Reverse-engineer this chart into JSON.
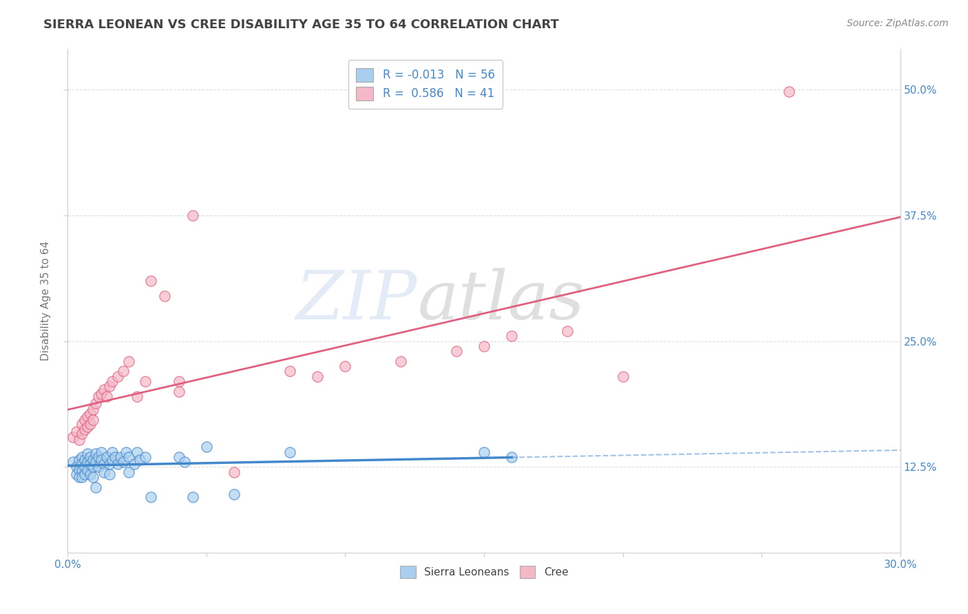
{
  "title": "SIERRA LEONEAN VS CREE DISABILITY AGE 35 TO 64 CORRELATION CHART",
  "source": "Source: ZipAtlas.com",
  "ylabel": "Disability Age 35 to 64",
  "xlim": [
    0.0,
    0.3
  ],
  "ylim": [
    0.04,
    0.54
  ],
  "yticks": [
    0.125,
    0.25,
    0.375,
    0.5
  ],
  "ytick_labels": [
    "12.5%",
    "25.0%",
    "37.5%",
    "50.0%"
  ],
  "xticks": [
    0.0,
    0.05,
    0.1,
    0.15,
    0.2,
    0.25,
    0.3
  ],
  "xtick_labels": [
    "0.0%",
    "",
    "",
    "",
    "",
    "",
    "30.0%"
  ],
  "legend_r_blue": "-0.013",
  "legend_n_blue": "56",
  "legend_r_pink": "0.586",
  "legend_n_pink": "41",
  "blue_color": "#aacfee",
  "pink_color": "#f4b8c8",
  "blue_line_color": "#4488cc",
  "pink_line_color": "#e06080",
  "blue_scatter": [
    [
      0.002,
      0.13
    ],
    [
      0.003,
      0.125
    ],
    [
      0.003,
      0.118
    ],
    [
      0.004,
      0.132
    ],
    [
      0.004,
      0.122
    ],
    [
      0.004,
      0.115
    ],
    [
      0.005,
      0.135
    ],
    [
      0.005,
      0.128
    ],
    [
      0.005,
      0.122
    ],
    [
      0.005,
      0.115
    ],
    [
      0.006,
      0.132
    ],
    [
      0.006,
      0.125
    ],
    [
      0.006,
      0.118
    ],
    [
      0.007,
      0.138
    ],
    [
      0.007,
      0.13
    ],
    [
      0.007,
      0.122
    ],
    [
      0.008,
      0.135
    ],
    [
      0.008,
      0.128
    ],
    [
      0.008,
      0.118
    ],
    [
      0.009,
      0.132
    ],
    [
      0.009,
      0.125
    ],
    [
      0.009,
      0.115
    ],
    [
      0.01,
      0.138
    ],
    [
      0.01,
      0.13
    ],
    [
      0.01,
      0.105
    ],
    [
      0.011,
      0.135
    ],
    [
      0.011,
      0.125
    ],
    [
      0.012,
      0.14
    ],
    [
      0.012,
      0.132
    ],
    [
      0.013,
      0.128
    ],
    [
      0.013,
      0.12
    ],
    [
      0.014,
      0.135
    ],
    [
      0.015,
      0.128
    ],
    [
      0.015,
      0.118
    ],
    [
      0.016,
      0.14
    ],
    [
      0.016,
      0.132
    ],
    [
      0.017,
      0.135
    ],
    [
      0.018,
      0.128
    ],
    [
      0.019,
      0.135
    ],
    [
      0.02,
      0.13
    ],
    [
      0.021,
      0.14
    ],
    [
      0.022,
      0.135
    ],
    [
      0.022,
      0.12
    ],
    [
      0.024,
      0.128
    ],
    [
      0.025,
      0.14
    ],
    [
      0.026,
      0.132
    ],
    [
      0.028,
      0.135
    ],
    [
      0.03,
      0.095
    ],
    [
      0.04,
      0.135
    ],
    [
      0.042,
      0.13
    ],
    [
      0.045,
      0.095
    ],
    [
      0.05,
      0.145
    ],
    [
      0.06,
      0.098
    ],
    [
      0.08,
      0.14
    ],
    [
      0.15,
      0.14
    ],
    [
      0.16,
      0.135
    ]
  ],
  "pink_scatter": [
    [
      0.002,
      0.155
    ],
    [
      0.003,
      0.16
    ],
    [
      0.004,
      0.152
    ],
    [
      0.005,
      0.168
    ],
    [
      0.005,
      0.158
    ],
    [
      0.006,
      0.172
    ],
    [
      0.006,
      0.162
    ],
    [
      0.007,
      0.175
    ],
    [
      0.007,
      0.165
    ],
    [
      0.008,
      0.178
    ],
    [
      0.008,
      0.168
    ],
    [
      0.009,
      0.182
    ],
    [
      0.009,
      0.172
    ],
    [
      0.01,
      0.188
    ],
    [
      0.011,
      0.195
    ],
    [
      0.012,
      0.198
    ],
    [
      0.013,
      0.202
    ],
    [
      0.014,
      0.195
    ],
    [
      0.015,
      0.205
    ],
    [
      0.016,
      0.21
    ],
    [
      0.018,
      0.215
    ],
    [
      0.02,
      0.22
    ],
    [
      0.022,
      0.23
    ],
    [
      0.025,
      0.195
    ],
    [
      0.028,
      0.21
    ],
    [
      0.03,
      0.31
    ],
    [
      0.035,
      0.295
    ],
    [
      0.04,
      0.21
    ],
    [
      0.04,
      0.2
    ],
    [
      0.045,
      0.375
    ],
    [
      0.06,
      0.12
    ],
    [
      0.08,
      0.22
    ],
    [
      0.09,
      0.215
    ],
    [
      0.1,
      0.225
    ],
    [
      0.12,
      0.23
    ],
    [
      0.14,
      0.24
    ],
    [
      0.15,
      0.245
    ],
    [
      0.16,
      0.255
    ],
    [
      0.18,
      0.26
    ],
    [
      0.26,
      0.498
    ],
    [
      0.2,
      0.215
    ]
  ],
  "watermark_zip": "ZIP",
  "watermark_atlas": "atlas",
  "background_color": "#ffffff",
  "grid_color": "#dddddd"
}
